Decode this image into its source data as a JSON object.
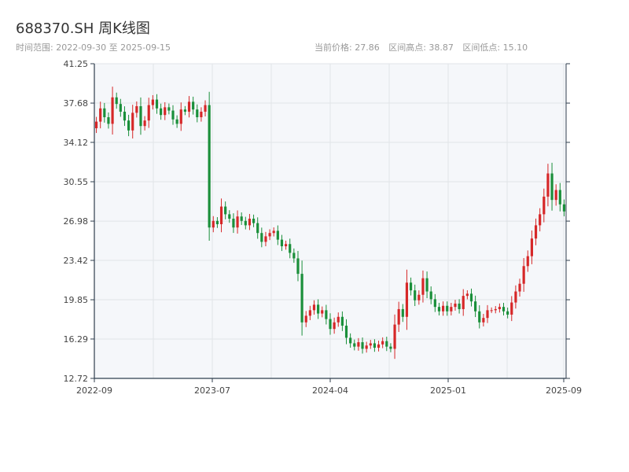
{
  "header": {
    "title": "688370.SH 周K线图",
    "subtitle": "时间范围: 2022-09-30 至 2025-09-15",
    "stats": {
      "current": "当前价格: 27.86",
      "high": "区间高点: 38.87",
      "low": "区间低点: 15.10"
    }
  },
  "colors": {
    "up": "#d62728",
    "down": "#1a8f3a",
    "plot_bg": "#f5f7fa",
    "grid": "#e1e4e8",
    "axis": "#2f3e4e"
  },
  "chart_data": {
    "type": "candlestick",
    "title": "688370.SH 周K线图",
    "xlabel": "",
    "ylabel": "",
    "x_ticks": [
      "2022-09",
      "2023-07",
      "2024-04",
      "2025-01",
      "2025-09"
    ],
    "y_ticks": [
      "12.72",
      "16.29",
      "19.85",
      "23.42",
      "26.98",
      "30.55",
      "34.12",
      "37.68",
      "41.25"
    ],
    "ylim": [
      12.72,
      41.25
    ],
    "grid": true,
    "close_series": [
      36.0,
      37.2,
      36.4,
      35.8,
      38.2,
      37.6,
      36.9,
      36.1,
      35.2,
      36.8,
      37.4,
      35.6,
      36.1,
      37.5,
      38.0,
      37.2,
      36.6,
      37.3,
      37.0,
      36.2,
      35.8,
      37.1,
      36.9,
      37.8,
      37.1,
      36.4,
      36.9,
      37.5,
      26.4,
      27.0,
      26.7,
      28.3,
      27.6,
      27.2,
      26.4,
      27.4,
      27.0,
      26.6,
      27.2,
      26.8,
      25.9,
      25.1,
      25.6,
      25.9,
      26.1,
      25.3,
      24.7,
      24.9,
      24.1,
      23.6,
      22.2,
      17.8,
      18.4,
      18.9,
      19.4,
      18.6,
      18.9,
      18.1,
      17.2,
      17.8,
      18.3,
      17.5,
      16.4,
      15.9,
      15.6,
      16.0,
      15.4,
      15.7,
      15.9,
      15.5,
      15.8,
      16.1,
      15.6,
      15.4,
      17.6,
      19.0,
      18.3,
      21.4,
      20.7,
      19.8,
      20.3,
      21.8,
      20.6,
      19.9,
      19.2,
      18.8,
      19.3,
      18.8,
      19.2,
      19.5,
      19.0,
      20.2,
      20.4,
      19.7,
      18.8,
      17.8,
      18.2,
      18.9,
      18.9,
      19.0,
      19.2,
      18.8,
      18.5,
      19.6,
      20.6,
      21.3,
      22.9,
      23.8,
      25.4,
      26.6,
      27.6,
      29.2,
      31.3,
      28.9,
      29.8,
      28.5,
      27.86
    ],
    "high_price": 38.87,
    "low_price": 15.1
  }
}
